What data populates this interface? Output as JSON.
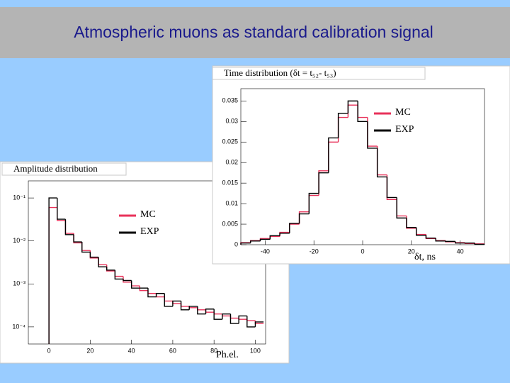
{
  "header": {
    "title": "Atmospheric muons as standard calibration signal"
  },
  "chart_data": [
    {
      "type": "histogram",
      "title": "Amplitude distribution",
      "x_label": "Ph.el.",
      "log_y": true,
      "bins": [
        0,
        4,
        8,
        12,
        16,
        20,
        24,
        28,
        32,
        36,
        40,
        44,
        48,
        52,
        56,
        60,
        64,
        68,
        72,
        76,
        80,
        84,
        88,
        92,
        96,
        100,
        104
      ],
      "xlim": [
        -10,
        105
      ],
      "xticks": [
        0,
        20,
        40,
        60,
        80,
        100
      ],
      "ylim": [
        4e-05,
        0.25
      ],
      "yticks": [
        {
          "value": 0.0001,
          "label": "10⁻⁴"
        },
        {
          "value": 0.001,
          "label": "10⁻³"
        },
        {
          "value": 0.01,
          "label": "10⁻²"
        },
        {
          "value": 0.1,
          "label": "10⁻¹"
        }
      ],
      "series": [
        {
          "name": "MC",
          "color": "#e8325a",
          "values": [
            0.06,
            0.03,
            0.015,
            0.009,
            0.006,
            0.004,
            0.0028,
            0.002,
            0.0015,
            0.0011,
            0.0009,
            0.0007,
            0.0006,
            0.0005,
            0.0004,
            0.00035,
            0.0003,
            0.00028,
            0.00025,
            0.00022,
            0.0002,
            0.00018,
            0.00016,
            0.00015,
            0.00014,
            0.00012
          ]
        },
        {
          "name": "EXP",
          "color": "#000000",
          "values": [
            0.1,
            0.032,
            0.014,
            0.0095,
            0.0055,
            0.0042,
            0.0025,
            0.0021,
            0.0013,
            0.0012,
            0.0008,
            0.0008,
            0.0005,
            0.0006,
            0.0003,
            0.0004,
            0.00025,
            0.0003,
            0.0002,
            0.00026,
            0.00015,
            0.0002,
            0.00012,
            0.00018,
            0.0001,
            0.00013
          ]
        }
      ]
    },
    {
      "type": "histogram",
      "title": "Time distribution  (δt = t₅₂- t₅₃)",
      "x_label": "δt, ns",
      "log_y": false,
      "bins": [
        -50,
        -46,
        -42,
        -38,
        -34,
        -30,
        -26,
        -22,
        -18,
        -14,
        -10,
        -6,
        -2,
        2,
        6,
        10,
        14,
        18,
        22,
        26,
        30,
        34,
        38,
        42,
        46,
        50
      ],
      "xlim": [
        -50,
        50
      ],
      "xticks": [
        -40,
        -20,
        0,
        20,
        40
      ],
      "ylim": [
        0,
        0.038
      ],
      "yticks": [
        0,
        0.005,
        0.01,
        0.015,
        0.02,
        0.025,
        0.03,
        0.035
      ],
      "series": [
        {
          "name": "MC",
          "color": "#e8325a",
          "values": [
            0.0005,
            0.001,
            0.0015,
            0.002,
            0.003,
            0.005,
            0.008,
            0.012,
            0.018,
            0.025,
            0.031,
            0.034,
            0.031,
            0.024,
            0.017,
            0.011,
            0.007,
            0.004,
            0.0025,
            0.0015,
            0.001,
            0.0007,
            0.0005,
            0.0003,
            0.0002
          ]
        },
        {
          "name": "EXP",
          "color": "#000000",
          "values": [
            0.0004,
            0.0009,
            0.0013,
            0.0022,
            0.0028,
            0.0052,
            0.0075,
            0.0125,
            0.0175,
            0.026,
            0.032,
            0.035,
            0.03,
            0.0235,
            0.0165,
            0.0115,
            0.0065,
            0.0042,
            0.0023,
            0.0016,
            0.0009,
            0.0008,
            0.0004,
            0.0004,
            0.0001
          ]
        }
      ]
    }
  ]
}
